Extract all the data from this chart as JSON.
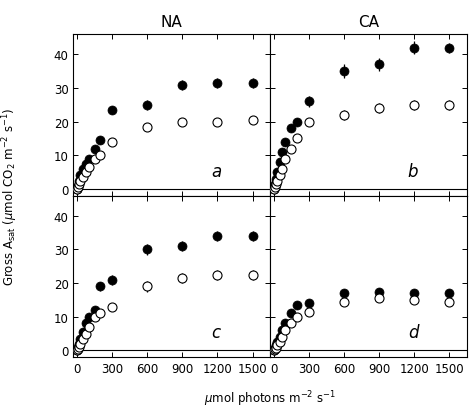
{
  "panel_a": {
    "filled": {
      "x": [
        0,
        10,
        20,
        30,
        50,
        75,
        100,
        150,
        200,
        300,
        600,
        900,
        1200,
        1500
      ],
      "y": [
        0,
        1,
        2.5,
        4,
        6,
        7.5,
        9,
        12,
        14.5,
        23.5,
        25,
        31,
        31.5,
        31.5
      ],
      "yerr": [
        0.3,
        0.3,
        0.4,
        0.4,
        0.5,
        0.5,
        0.6,
        0.8,
        1.0,
        1.2,
        1.5,
        1.5,
        1.5,
        1.5
      ]
    },
    "open": {
      "x": [
        0,
        10,
        20,
        30,
        50,
        75,
        100,
        150,
        200,
        300,
        600,
        900,
        1200,
        1500
      ],
      "y": [
        0,
        0.5,
        1.5,
        2.5,
        3.5,
        5,
        6.5,
        9,
        10,
        14,
        18.5,
        20,
        20,
        20.5
      ],
      "yerr": [
        0.2,
        0.2,
        0.3,
        0.3,
        0.4,
        0.5,
        0.6,
        0.8,
        0.8,
        1.0,
        1.2,
        1.2,
        1.2,
        1.2
      ]
    },
    "label": "a"
  },
  "panel_b": {
    "filled": {
      "x": [
        0,
        10,
        20,
        30,
        50,
        75,
        100,
        150,
        200,
        300,
        600,
        900,
        1200,
        1500
      ],
      "y": [
        0,
        1.5,
        3,
        5,
        8,
        11,
        14,
        18,
        20,
        26,
        35,
        37,
        42,
        42
      ],
      "yerr": [
        0.3,
        0.3,
        0.4,
        0.5,
        0.6,
        0.7,
        0.8,
        1.0,
        1.2,
        1.5,
        2.0,
        2.0,
        2.0,
        1.5
      ]
    },
    "open": {
      "x": [
        0,
        10,
        20,
        30,
        50,
        75,
        100,
        150,
        200,
        300,
        600,
        900,
        1200,
        1500
      ],
      "y": [
        0,
        0.5,
        1.5,
        2.5,
        4,
        6,
        9,
        12,
        15,
        20,
        22,
        24,
        25,
        25
      ],
      "yerr": [
        0.2,
        0.2,
        0.3,
        0.3,
        0.4,
        0.5,
        0.6,
        0.8,
        1.0,
        1.2,
        1.5,
        1.5,
        1.5,
        1.5
      ]
    },
    "label": "b"
  },
  "panel_c": {
    "filled": {
      "x": [
        0,
        10,
        20,
        30,
        50,
        75,
        100,
        150,
        200,
        300,
        600,
        900,
        1200,
        1500
      ],
      "y": [
        0,
        1.0,
        2.0,
        3.5,
        5.5,
        8,
        10,
        12,
        19,
        21,
        30,
        31,
        34,
        34
      ],
      "yerr": [
        0.3,
        0.3,
        0.4,
        0.4,
        0.5,
        0.6,
        0.7,
        0.8,
        1.2,
        1.5,
        1.5,
        1.5,
        1.5,
        1.5
      ]
    },
    "open": {
      "x": [
        0,
        10,
        20,
        30,
        50,
        75,
        100,
        150,
        200,
        300,
        600,
        900,
        1200,
        1500
      ],
      "y": [
        0,
        0.5,
        1.0,
        2.0,
        3.5,
        5,
        7,
        10,
        11,
        13,
        19,
        21.5,
        22.5,
        22.5
      ],
      "yerr": [
        0.2,
        0.2,
        0.3,
        0.3,
        0.4,
        0.5,
        0.6,
        0.7,
        0.8,
        1.0,
        1.5,
        1.5,
        1.5,
        1.5
      ]
    },
    "label": "c"
  },
  "panel_d": {
    "filled": {
      "x": [
        0,
        10,
        20,
        30,
        50,
        75,
        100,
        150,
        200,
        300,
        600,
        900,
        1200,
        1500
      ],
      "y": [
        0,
        0.8,
        1.5,
        2.5,
        4,
        6,
        8,
        11,
        13.5,
        14,
        17,
        17.5,
        17,
        17
      ],
      "yerr": [
        0.2,
        0.2,
        0.3,
        0.3,
        0.4,
        0.5,
        0.6,
        0.7,
        0.8,
        1.0,
        1.0,
        1.0,
        1.0,
        1.0
      ]
    },
    "open": {
      "x": [
        0,
        10,
        20,
        30,
        50,
        75,
        100,
        150,
        200,
        300,
        600,
        900,
        1200,
        1500
      ],
      "y": [
        0,
        0.3,
        0.8,
        1.5,
        2.5,
        4,
        6,
        8,
        10,
        11.5,
        14.5,
        15.5,
        15,
        14.5
      ],
      "yerr": [
        0.2,
        0.2,
        0.2,
        0.3,
        0.3,
        0.4,
        0.5,
        0.6,
        0.7,
        0.8,
        1.0,
        1.0,
        1.0,
        1.0
      ]
    },
    "label": "d"
  },
  "xlim": [
    -30,
    1650
  ],
  "ylim": [
    -2,
    46
  ],
  "yticks": [
    0,
    10,
    20,
    30,
    40
  ],
  "xticks": [
    0,
    300,
    600,
    900,
    1200,
    1500
  ],
  "col_labels": [
    "NA",
    "CA"
  ],
  "marker_size": 6.5,
  "elinewidth": 0.9,
  "capsize": 0,
  "spine_lw": 0.8
}
